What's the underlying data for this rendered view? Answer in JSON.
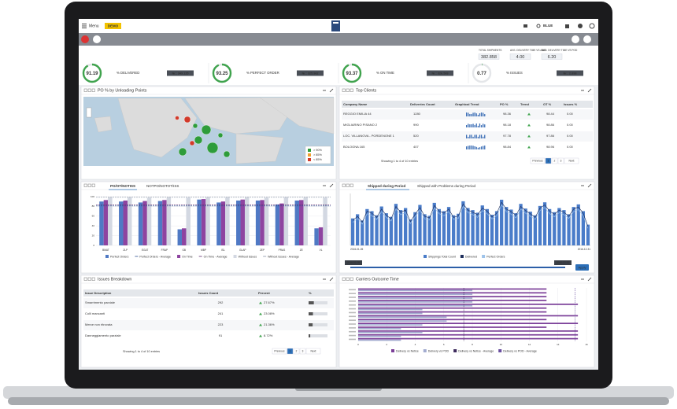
{
  "topbar": {
    "menu": "Menu",
    "badge": "DEMO",
    "user": "BLUE"
  },
  "summary": [
    {
      "label": "TOTAL SHIPMENTS",
      "value": "382.858"
    },
    {
      "label": "AVG. DELIVERY TIME VS AWD",
      "value": "4.00"
    },
    {
      "label": "AVG. DELIVERY TIME VS POD",
      "value": "6.20"
    }
  ],
  "kpis": [
    {
      "value": 91.19,
      "label": "% DELIVERED",
      "count": "Nr.: 349.125",
      "color": "#3fa34d"
    },
    {
      "value": 93.25,
      "label": "% PERFECT ORDER",
      "count": "Nr.: 325.962",
      "color": "#3fa34d"
    },
    {
      "value": 93.37,
      "label": "% ON TIME",
      "count": "Nr.: 326.569",
      "color": "#3fa34d"
    },
    {
      "value": 0.77,
      "label": "% ISSUES",
      "count": "Nr.: 2.898",
      "color": "#3fa34d"
    }
  ],
  "map": {
    "title": "PO % by Unloading Points",
    "legend": [
      {
        "label": "> 90%",
        "color": "#2e9c3a"
      },
      {
        "label": "> 85%",
        "color": "#f0a030"
      },
      {
        "label": "< 85%",
        "color": "#d23a2a"
      }
    ]
  },
  "clients": {
    "title": "Top Clients",
    "columns": [
      "Company Name",
      "Deliveries Count",
      "Graphical Trend",
      "PO %",
      "Trend",
      "OT %",
      "Issues %"
    ],
    "rows": [
      {
        "company": "REGGIO EMILIA 44",
        "deliveries": "1280",
        "po": "98.36",
        "ot": "98.44",
        "issues": "0.00"
      },
      {
        "company": "MIGLIARINO PISANO 2",
        "deliveries": "990",
        "po": "98.18",
        "ot": "98.86",
        "issues": "0.00"
      },
      {
        "company": "LOC. VILLANOVA - PORDENONE 1",
        "deliveries": "520",
        "po": "97.78",
        "ot": "97.86",
        "issues": "0.00"
      },
      {
        "company": "BOLOGNA 165",
        "deliveries": "407",
        "po": "98.84",
        "ot": "98.96",
        "issues": "0.00"
      }
    ],
    "footer": "Showing 1 to 4 of 10 entries",
    "pager": [
      "Previous",
      "1",
      "2",
      "3",
      "Next"
    ]
  },
  "performance": {
    "tabs": [
      "PO/OT/NOTISS",
      "NOTPO/NOTOT/ISS"
    ],
    "chart": {
      "type": "bar",
      "categories": [
        "BMAT",
        "ZLP",
        "EGAT",
        "FRAP",
        "GB",
        "MBP",
        "ISL",
        "GLAP",
        "ZEP",
        "PRAS",
        "ZE",
        "VL"
      ],
      "ylim": [
        0,
        100
      ],
      "yticks": [
        0,
        20,
        40,
        60,
        80,
        100
      ],
      "series": [
        {
          "name": "Perfect Orders",
          "color": "#4f79c4",
          "values": [
            90,
            90,
            88,
            91,
            33,
            94,
            88,
            92,
            92,
            84,
            92,
            35
          ]
        },
        {
          "name": "On Time",
          "color": "#8e44a0",
          "values": [
            93,
            92,
            91,
            93,
            35,
            95,
            90,
            94,
            93,
            86,
            93,
            37
          ]
        },
        {
          "name": "Without Issues",
          "color": "#d3d8e2",
          "values": [
            99,
            99,
            98,
            99,
            98,
            99,
            99,
            99,
            98,
            99,
            99,
            98
          ]
        }
      ],
      "averages": [
        {
          "name": "Perfect Orders - Average",
          "color": "#2a4d8f",
          "value": 81
        },
        {
          "name": "On Time - Average",
          "color": "#5e2a6e",
          "value": 83
        },
        {
          "name": "Without Issues - Average",
          "color": "#8a93a6",
          "value": 98.7
        }
      ]
    }
  },
  "shipped": {
    "tabs": [
      "Shipped during Period",
      "Shipped with Problems during Period"
    ],
    "range": [
      "2016-01-05",
      "2016-12-31"
    ],
    "apply": "Apply",
    "chart": {
      "type": "column-line",
      "ylim": [
        0,
        100
      ],
      "series": [
        {
          "name": "Shippings Total Count",
          "color": "#4a7cc9",
          "values": [
            52,
            60,
            48,
            70,
            66,
            58,
            75,
            62,
            55,
            80,
            68,
            72,
            50,
            64,
            78,
            60,
            57,
            82,
            70,
            66,
            74,
            58,
            61,
            85,
            72,
            68,
            63,
            77,
            70,
            59,
            66,
            88,
            74,
            69,
            62,
            80,
            71,
            65,
            58,
            76,
            83,
            70,
            64,
            72,
            68,
            60,
            74,
            79,
            66,
            40
          ]
        },
        {
          "name": "Delivered",
          "color": "#1e2f5c",
          "values": [
            48,
            56,
            45,
            66,
            62,
            54,
            70,
            58,
            51,
            75,
            64,
            68,
            46,
            60,
            73,
            56,
            53,
            77,
            66,
            62,
            70,
            54,
            57,
            80,
            68,
            64,
            59,
            72,
            66,
            55,
            62,
            83,
            70,
            65,
            58,
            75,
            67,
            61,
            54,
            72,
            78,
            66,
            60,
            68,
            64,
            56,
            70,
            74,
            62,
            36
          ]
        },
        {
          "name": "Perfect Orders",
          "color": "#9ec3ea",
          "values": [
            44,
            52,
            41,
            61,
            57,
            50,
            65,
            54,
            47,
            70,
            59,
            63,
            42,
            55,
            68,
            51,
            49,
            72,
            61,
            57,
            65,
            50,
            52,
            75,
            63,
            59,
            54,
            67,
            61,
            51,
            57,
            78,
            65,
            60,
            53,
            70,
            62,
            56,
            50,
            67,
            73,
            61,
            55,
            63,
            59,
            52,
            65,
            69,
            57,
            33
          ]
        }
      ]
    }
  },
  "issues": {
    "title": "Issues Breakdown",
    "columns": [
      "Issue Description",
      "Issues Count",
      "Percent",
      "%"
    ],
    "rows": [
      {
        "description": "Smarrimento parziale",
        "count": 292,
        "percent": {
          "value": 27.67,
          "label": "27.67%"
        }
      },
      {
        "description": "Colli mancanti",
        "count": 241,
        "percent": {
          "value": 23.08,
          "label": "23.08%"
        }
      },
      {
        "description": "Merce non ritrovata",
        "count": 223,
        "percent": {
          "value": 21.36,
          "label": "21.36%"
        }
      },
      {
        "description": "Danneggiamento parziale",
        "count": 91,
        "percent": {
          "value": 8.72,
          "label": "8.72%"
        }
      }
    ],
    "footer": "Showing 1 to 4 of 10 entries",
    "pager": [
      "Previous",
      "1",
      "2",
      "3",
      "Next"
    ]
  },
  "carriers": {
    "title": "Carriers Outcome Time",
    "chart": {
      "type": "hbar",
      "xlim": [
        0,
        16
      ],
      "xticks": [
        0,
        2,
        4,
        6,
        8,
        10,
        12,
        14,
        16
      ],
      "series": [
        {
          "name": "Delivery vs Notice",
          "color": "#7b3f98",
          "values": [
            13.2,
            13.2,
            13.2,
            13.2,
            15.4,
            13.2,
            13.2,
            15.4,
            13.2,
            15.4,
            13.2,
            15.4,
            15.4,
            15.4
          ]
        },
        {
          "name": "Delivery vs POD",
          "color": "#a3acd0",
          "values": [
            8.0,
            8.0,
            8.0,
            8.0,
            8.0,
            4.5,
            4.5,
            6.2,
            6.2,
            4.5,
            3.0,
            4.5,
            3.0,
            3.0
          ]
        }
      ],
      "averages": [
        {
          "name": "Delivery vs Notice - Average",
          "color": "#3d2a5c",
          "value": 7.4
        },
        {
          "name": "Delivery vs POD - Average",
          "color": "#6a4fa0",
          "value": 15.2
        }
      ]
    }
  }
}
